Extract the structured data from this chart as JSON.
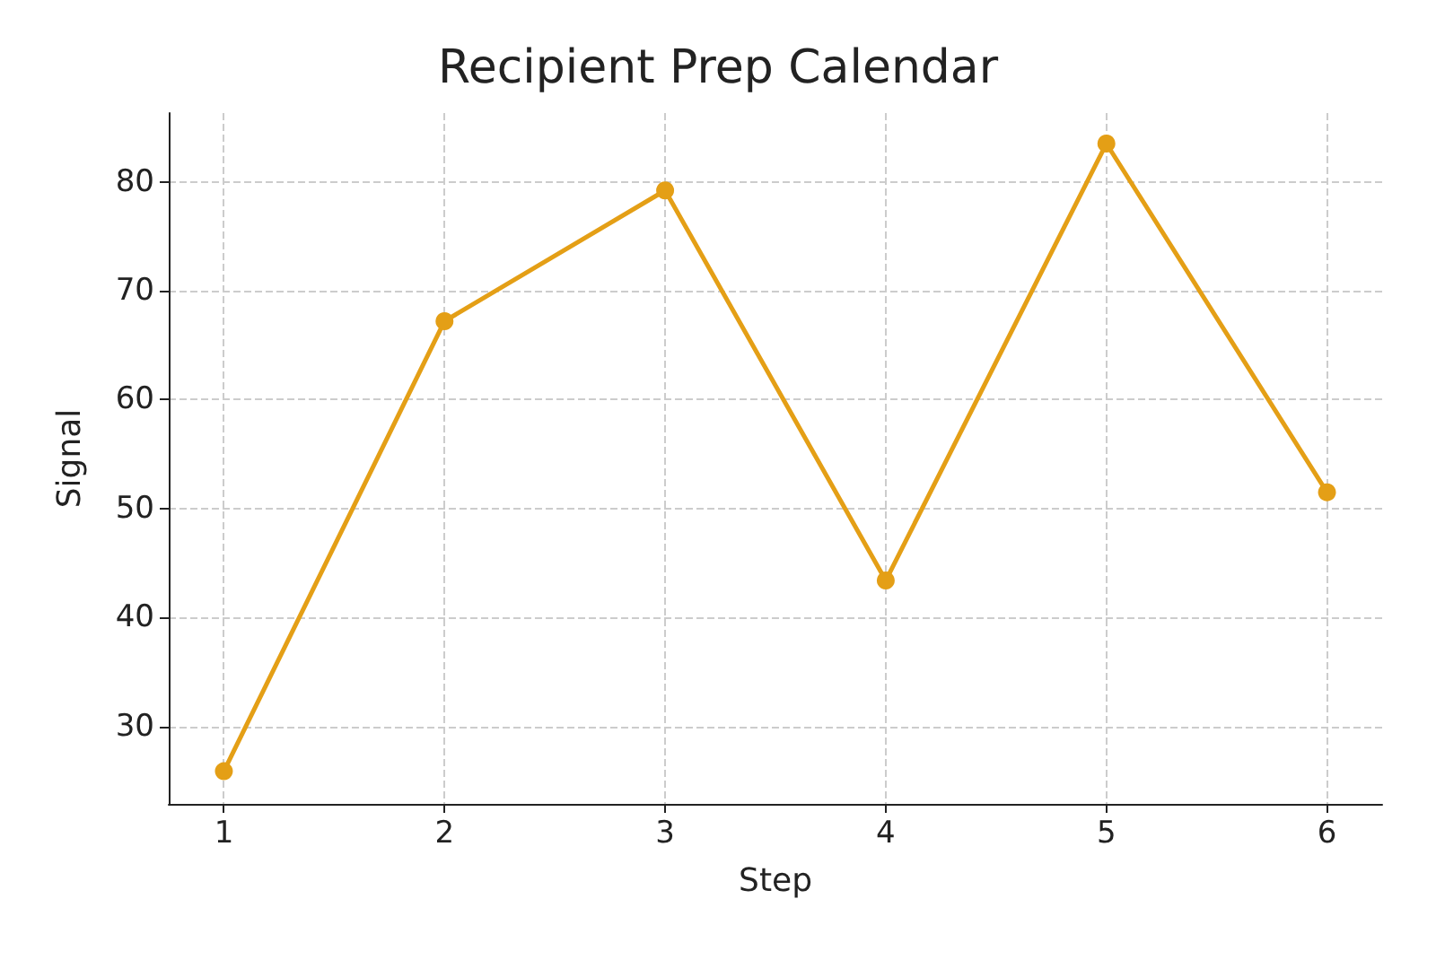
{
  "chart_data": {
    "type": "line",
    "title": "Recipient Prep Calendar",
    "xlabel": "Step",
    "ylabel": "Signal",
    "x": [
      1,
      2,
      3,
      4,
      5,
      6
    ],
    "series": [
      {
        "color": "#e49f16",
        "values": [
          25.9,
          67.2,
          79.2,
          43.4,
          83.5,
          51.5
        ]
      }
    ],
    "xlim": [
      0.75,
      6.25
    ],
    "xticks": [
      1,
      2,
      3,
      4,
      5,
      6
    ],
    "ylim": [
      22.9,
      86.3
    ],
    "yticks": [
      30,
      40,
      50,
      60,
      70,
      80
    ],
    "grid": true,
    "marker": "circle",
    "line_style": "solid"
  }
}
